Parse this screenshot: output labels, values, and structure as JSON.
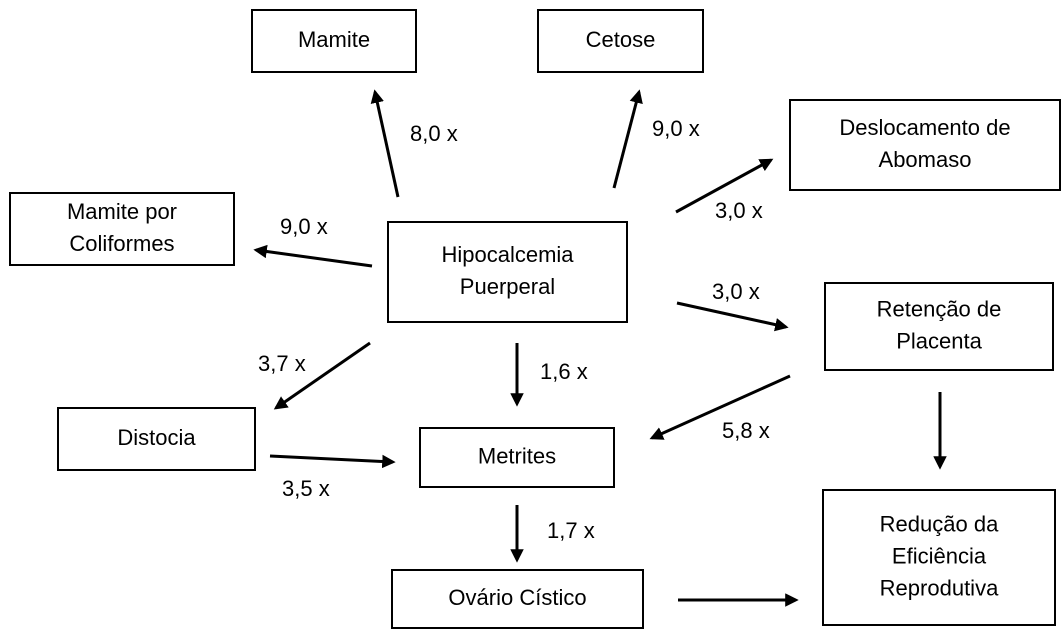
{
  "nodes": [
    {
      "lines": [
        "Mamite"
      ]
    },
    {
      "lines": [
        "Cetose"
      ]
    },
    {
      "lines": [
        "Deslocamento de",
        "Abomaso"
      ]
    },
    {
      "lines": [
        "Mamite por",
        "Coliformes"
      ]
    },
    {
      "lines": [
        "Hipocalcemia",
        "Puerperal"
      ]
    },
    {
      "lines": [
        "Retenção de",
        "Placenta"
      ]
    },
    {
      "lines": [
        "Distocia"
      ]
    },
    {
      "lines": [
        "Metrites"
      ]
    },
    {
      "lines": [
        "Ovário Cístico"
      ]
    },
    {
      "lines": [
        "Redução da",
        "Eficiência",
        "Reprodutiva"
      ]
    }
  ],
  "edge_labels": [
    "8,0 x",
    "9,0 x",
    "3,0 x",
    "9,0 x",
    "3,0 x",
    "3,7 x",
    "1,6 x",
    "5,8 x",
    "3,5 x",
    "1,7 x"
  ]
}
